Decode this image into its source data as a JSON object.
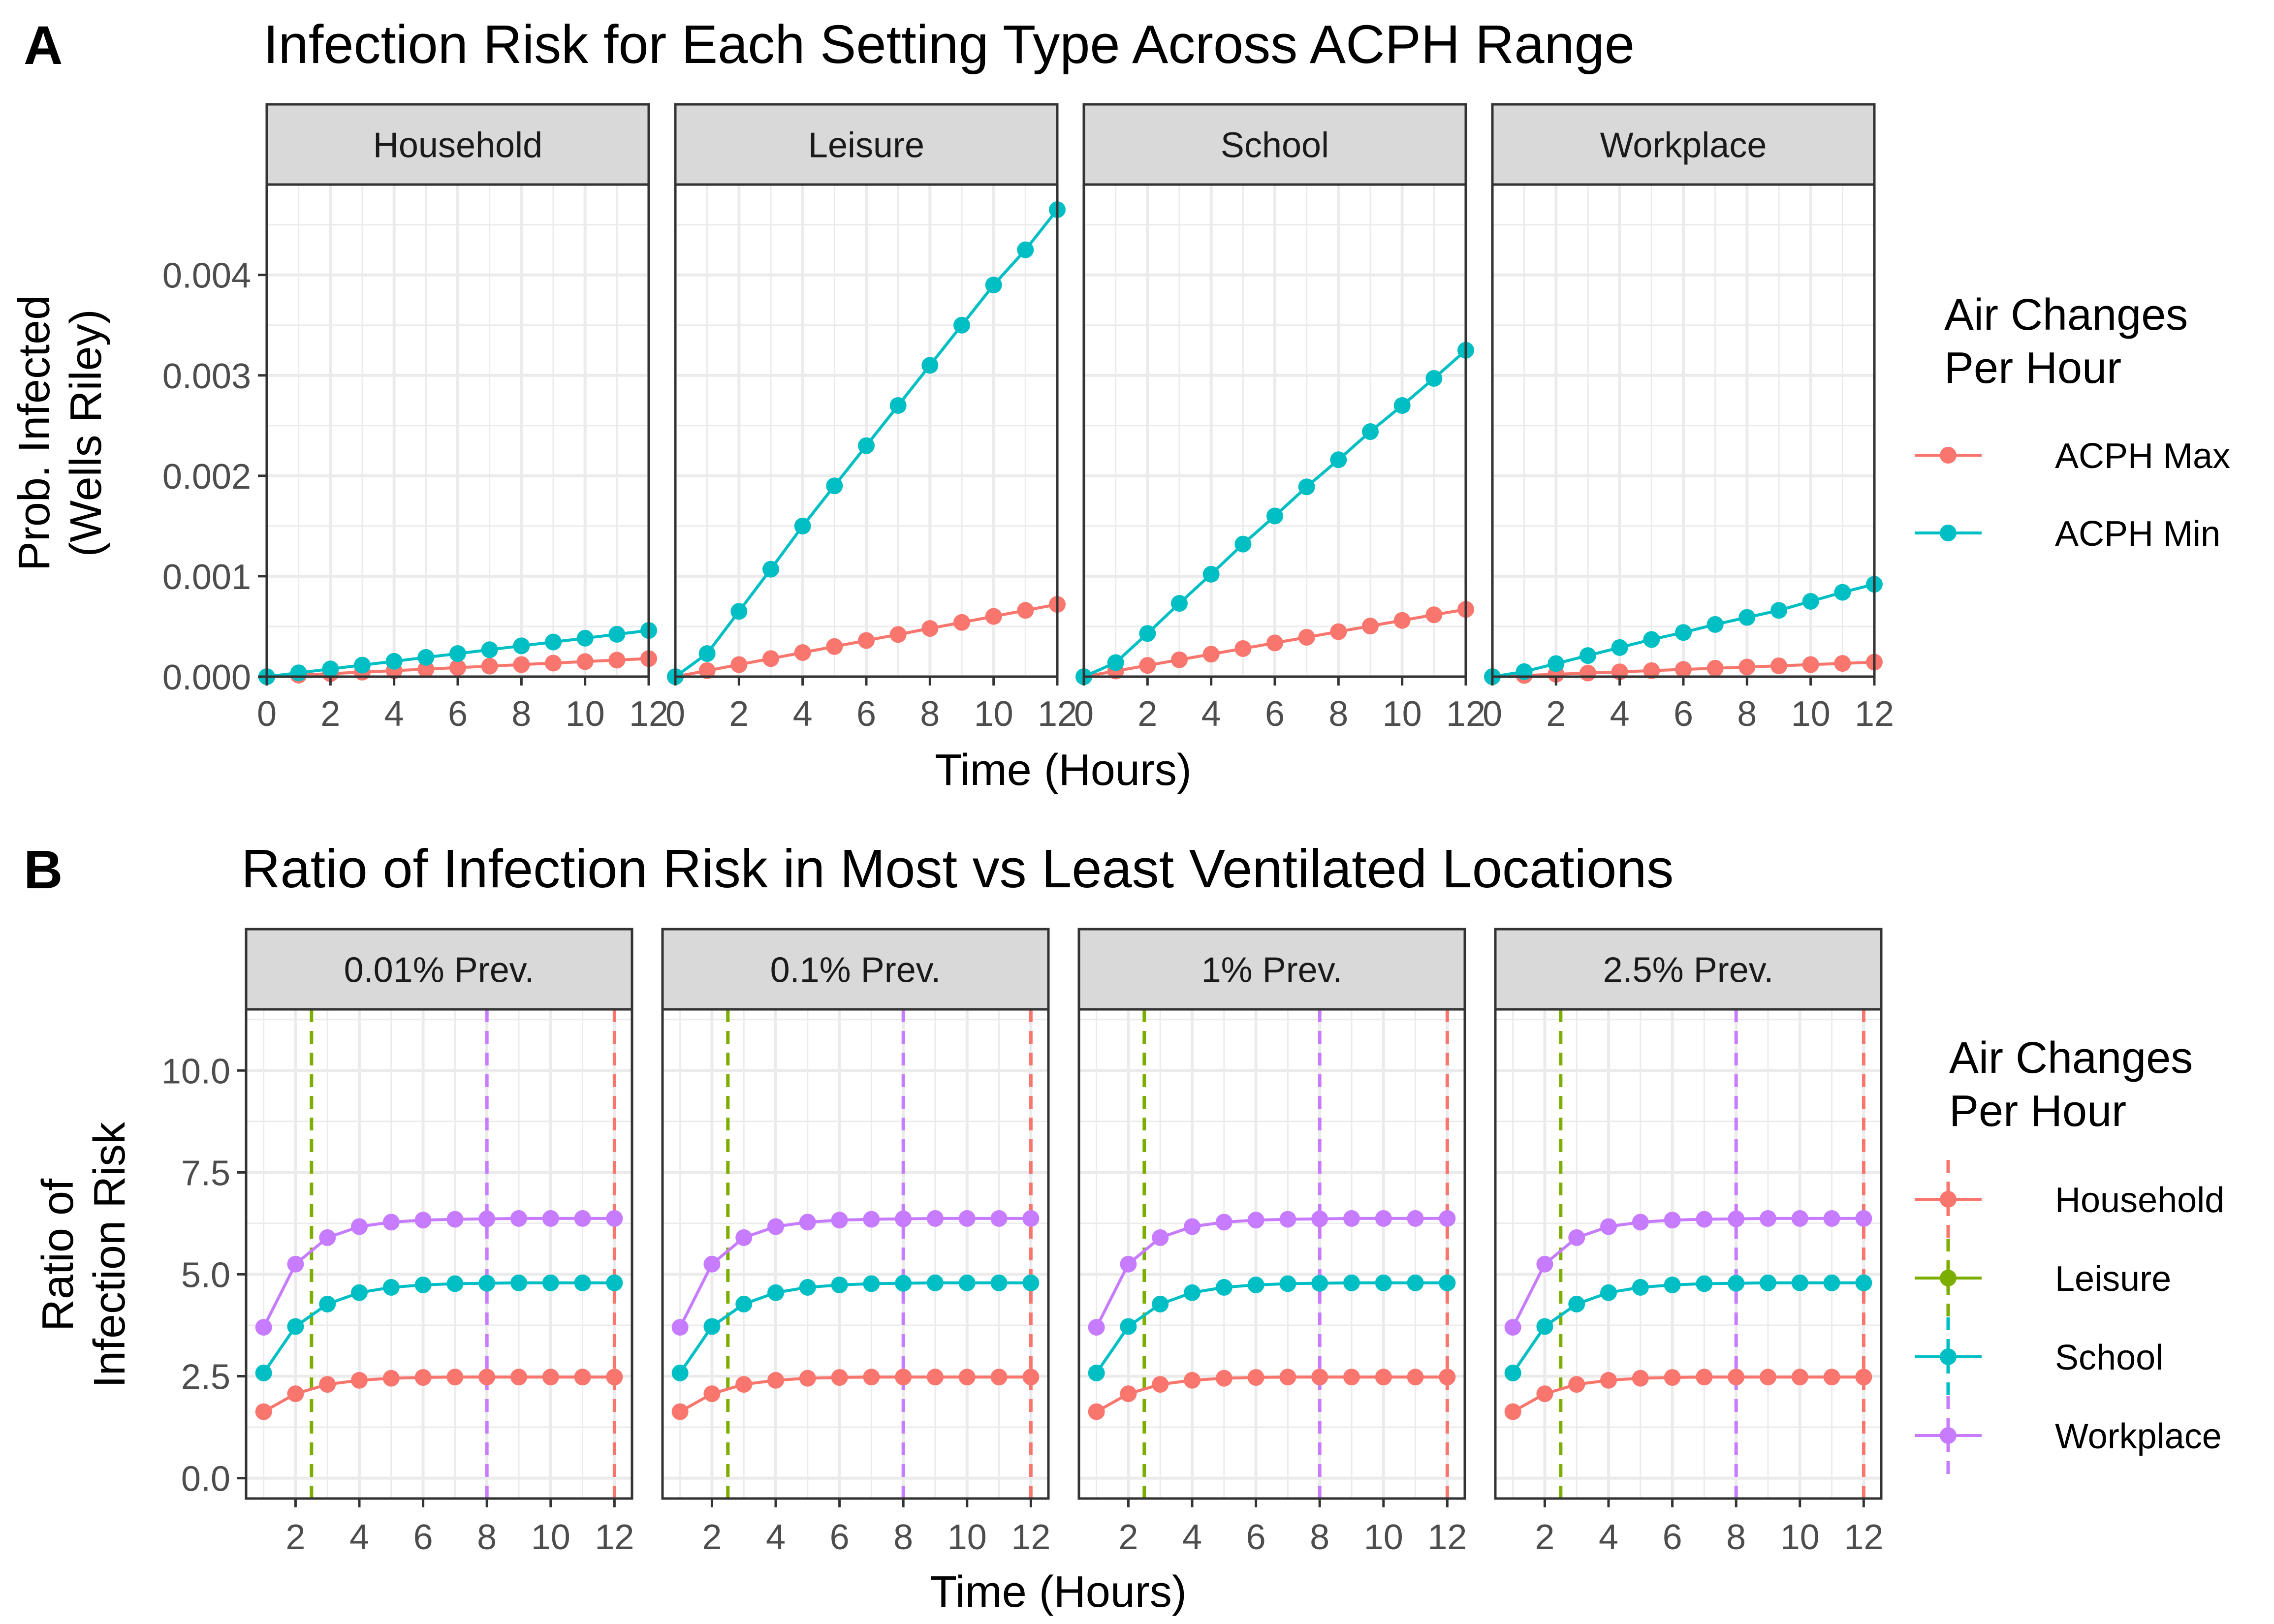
{
  "panel_a": {
    "tag": "A",
    "title": "Infection Risk for Each Setting Type Across ACPH Range",
    "ylabel_line1": "Prob. Infected",
    "ylabel_line2": "(Wells Riley)",
    "xlabel": "Time (Hours)",
    "legend_title_line1": "Air Changes",
    "legend_title_line2": "Per Hour"
  },
  "panel_b": {
    "tag": "B",
    "title": "Ratio of Infection Risk in Most vs Least Ventilated Locations",
    "ylabel_line1": "Ratio of",
    "ylabel_line2": "Infection Risk",
    "xlabel": "Time (Hours)",
    "legend_title_line1": "Air Changes",
    "legend_title_line2": "Per Hour"
  },
  "colors": {
    "acph_max": "#F8766D",
    "acph_min": "#00BFC4",
    "household": "#F8766D",
    "leisure": "#7CAE00",
    "school": "#00BFC4",
    "workplace": "#C77CFF",
    "strip_fill": "#D9D9D9",
    "grid_major": "#EBEBEB",
    "grid_minor": "#F5F5F5",
    "frame": "#333333"
  },
  "chart_data": [
    {
      "type": "line",
      "title": "Infection Risk for Each Setting Type Across ACPH Range",
      "xlabel": "Time (Hours)",
      "ylabel": "Prob. Infected (Wells Riley)",
      "xlim": [
        0,
        12
      ],
      "ylim": [
        0,
        0.0049
      ],
      "xticks": [
        0,
        2,
        4,
        6,
        8,
        10,
        12
      ],
      "yticks": [
        0,
        0.001,
        0.002,
        0.003,
        0.004
      ],
      "ytick_labels": [
        "0.000",
        "0.001",
        "0.002",
        "0.003",
        "0.004"
      ],
      "grid": true,
      "legend": "right",
      "legend_entries": [
        "ACPH Max",
        "ACPH Min"
      ],
      "x": [
        0,
        1,
        2,
        3,
        4,
        5,
        6,
        7,
        8,
        9,
        10,
        11,
        12
      ],
      "facets": [
        {
          "label": "Household",
          "series": [
            {
              "name": "ACPH Max",
              "values": [
                0,
                1.5e-05,
                3e-05,
                4.5e-05,
                6e-05,
                7.5e-05,
                9e-05,
                0.000105,
                0.00012,
                0.000135,
                0.00015,
                0.000165,
                0.00018
              ]
            },
            {
              "name": "ACPH Min",
              "values": [
                0,
                3.8e-05,
                7.7e-05,
                0.000115,
                0.000153,
                0.000192,
                0.00023,
                0.000268,
                0.000307,
                0.000345,
                0.000383,
                0.000422,
                0.00046
              ]
            }
          ]
        },
        {
          "label": "Leisure",
          "series": [
            {
              "name": "ACPH Max",
              "values": [
                0,
                6e-05,
                0.00012,
                0.00018,
                0.00024,
                0.0003,
                0.00036,
                0.00042,
                0.00048,
                0.00054,
                0.0006,
                0.00066,
                0.00072
              ]
            },
            {
              "name": "ACPH Min",
              "values": [
                0,
                0.00023,
                0.00065,
                0.00107,
                0.0015,
                0.0019,
                0.0023,
                0.0027,
                0.0031,
                0.0035,
                0.0039,
                0.00425,
                0.00465
              ]
            }
          ]
        },
        {
          "label": "School",
          "series": [
            {
              "name": "ACPH Max",
              "values": [
                0,
                5.6e-05,
                0.000112,
                0.000168,
                0.000224,
                0.00028,
                0.000336,
                0.000392,
                0.000448,
                0.000504,
                0.00056,
                0.000616,
                0.00067
              ]
            },
            {
              "name": "ACPH Min",
              "values": [
                0,
                0.00014,
                0.00043,
                0.00073,
                0.00102,
                0.00132,
                0.0016,
                0.00189,
                0.00216,
                0.00244,
                0.0027,
                0.00297,
                0.00325
              ]
            }
          ]
        },
        {
          "label": "Workplace",
          "series": [
            {
              "name": "ACPH Max",
              "values": [
                0,
                1.2e-05,
                2.4e-05,
                3.6e-05,
                4.8e-05,
                6e-05,
                7.2e-05,
                8.4e-05,
                9.6e-05,
                0.000108,
                0.00012,
                0.000132,
                0.000145
              ]
            },
            {
              "name": "ACPH Min",
              "values": [
                0,
                5e-05,
                0.00013,
                0.00021,
                0.00029,
                0.00037,
                0.00044,
                0.00052,
                0.00059,
                0.00066,
                0.00075,
                0.00084,
                0.00092
              ]
            }
          ]
        }
      ]
    },
    {
      "type": "line",
      "title": "Ratio of Infection Risk in Most vs Least Ventilated Locations",
      "xlabel": "Time (Hours)",
      "ylabel": "Ratio of Infection Risk",
      "xlim": [
        0.45,
        12.55
      ],
      "ylim": [
        -0.5,
        11.5
      ],
      "xticks": [
        2,
        4,
        6,
        8,
        10,
        12
      ],
      "yticks": [
        0,
        2.5,
        5,
        7.5,
        10
      ],
      "ytick_labels": [
        "0.0",
        "2.5",
        "5.0",
        "7.5",
        "10.0"
      ],
      "grid": true,
      "legend": "right",
      "legend_entries": [
        "Household",
        "Leisure",
        "School",
        "Workplace"
      ],
      "x": [
        1,
        2,
        3,
        4,
        5,
        6,
        7,
        8,
        9,
        10,
        11,
        12
      ],
      "vlines": [
        {
          "name": "Leisure",
          "x": 2.5
        },
        {
          "name": "Workplace",
          "x": 8
        },
        {
          "name": "Household",
          "x": 12
        }
      ],
      "facets": [
        {
          "label": "0.01% Prev.",
          "series": [
            {
              "name": "Household",
              "values": [
                1.63,
                2.07,
                2.3,
                2.4,
                2.45,
                2.47,
                2.48,
                2.48,
                2.48,
                2.48,
                2.48,
                2.48
              ]
            },
            {
              "name": "School",
              "values": [
                2.58,
                3.72,
                4.27,
                4.55,
                4.68,
                4.74,
                4.77,
                4.78,
                4.79,
                4.79,
                4.79,
                4.79
              ]
            },
            {
              "name": "Workplace",
              "values": [
                3.7,
                5.25,
                5.9,
                6.17,
                6.28,
                6.33,
                6.35,
                6.36,
                6.37,
                6.37,
                6.37,
                6.37
              ]
            }
          ]
        },
        {
          "label": "0.1% Prev.",
          "series": [
            {
              "name": "Household",
              "values": [
                1.63,
                2.07,
                2.3,
                2.4,
                2.45,
                2.47,
                2.48,
                2.48,
                2.48,
                2.48,
                2.48,
                2.48
              ]
            },
            {
              "name": "School",
              "values": [
                2.58,
                3.72,
                4.27,
                4.55,
                4.68,
                4.74,
                4.77,
                4.78,
                4.79,
                4.79,
                4.79,
                4.79
              ]
            },
            {
              "name": "Workplace",
              "values": [
                3.7,
                5.25,
                5.9,
                6.17,
                6.28,
                6.33,
                6.35,
                6.36,
                6.37,
                6.37,
                6.37,
                6.37
              ]
            }
          ]
        },
        {
          "label": "1% Prev.",
          "series": [
            {
              "name": "Household",
              "values": [
                1.63,
                2.07,
                2.3,
                2.4,
                2.45,
                2.47,
                2.48,
                2.48,
                2.48,
                2.48,
                2.48,
                2.48
              ]
            },
            {
              "name": "School",
              "values": [
                2.58,
                3.72,
                4.27,
                4.55,
                4.68,
                4.74,
                4.77,
                4.78,
                4.79,
                4.79,
                4.79,
                4.79
              ]
            },
            {
              "name": "Workplace",
              "values": [
                3.7,
                5.25,
                5.9,
                6.17,
                6.28,
                6.33,
                6.35,
                6.36,
                6.37,
                6.37,
                6.37,
                6.37
              ]
            }
          ]
        },
        {
          "label": "2.5% Prev.",
          "series": [
            {
              "name": "Household",
              "values": [
                1.63,
                2.07,
                2.3,
                2.4,
                2.45,
                2.47,
                2.48,
                2.48,
                2.48,
                2.48,
                2.48,
                2.48
              ]
            },
            {
              "name": "School",
              "values": [
                2.58,
                3.72,
                4.27,
                4.55,
                4.68,
                4.74,
                4.77,
                4.78,
                4.79,
                4.79,
                4.79,
                4.79
              ]
            },
            {
              "name": "Workplace",
              "values": [
                3.7,
                5.25,
                5.9,
                6.17,
                6.28,
                6.33,
                6.35,
                6.36,
                6.37,
                6.37,
                6.37,
                6.37
              ]
            }
          ]
        }
      ]
    }
  ]
}
